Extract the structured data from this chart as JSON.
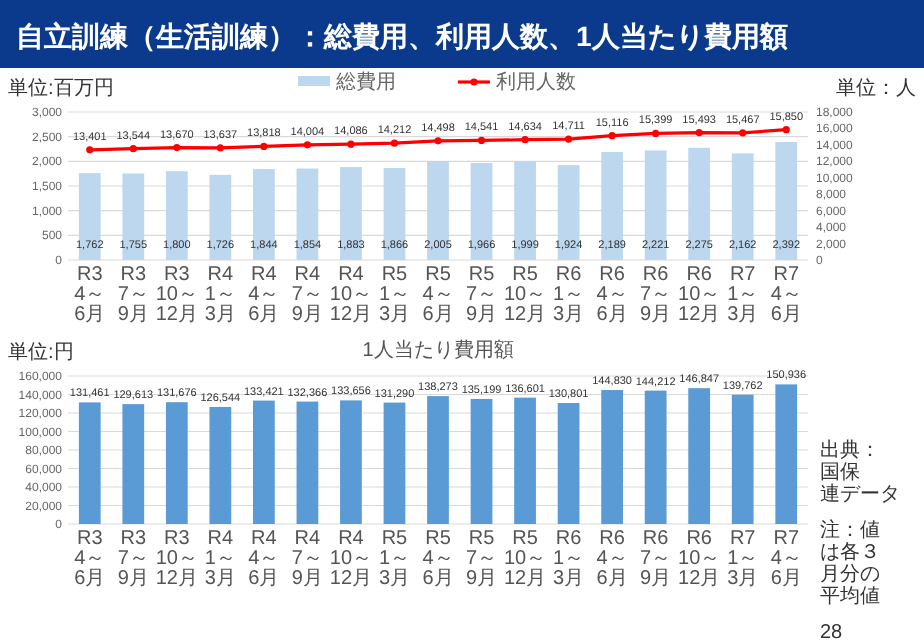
{
  "chart_data": [
    {
      "type": "bar",
      "title": "自立訓練（生活訓練）：総費用、利用人数、1人当たり費用額",
      "ylabel": "単位:百万円",
      "y2label": "単位：人",
      "categories": [
        "R3\n4～6月",
        "R3\n7～9月",
        "R3\n10～12月",
        "R4\n1～3月",
        "R4\n4～6月",
        "R4\n7～9月",
        "R4\n10～12月",
        "R5\n1～3月",
        "R5\n4～6月",
        "R5\n7～9月",
        "R5\n10～12月",
        "R6\n1～3月",
        "R6\n4～6月",
        "R6\n7～9月",
        "R6\n10～12月",
        "R7\n1～3月",
        "R7\n4～6月"
      ],
      "series": [
        {
          "type": "bar",
          "name": "総費用",
          "color": "#bdd7ee",
          "values": [
            1762,
            1755,
            1800,
            1726,
            1844,
            1854,
            1883,
            1866,
            2005,
            1966,
            1999,
            1924,
            2189,
            2221,
            2275,
            2162,
            2392
          ],
          "value_labels": [
            "1,762",
            "1,755",
            "1,800",
            "1,726",
            "1,844",
            "1,854",
            "1,883",
            "1,866",
            "2,005",
            "1,966",
            "1,999",
            "1,924",
            "2,189",
            "2,221",
            "2,275",
            "2,162",
            "2,392"
          ]
        },
        {
          "type": "line",
          "axis": "y2",
          "name": "利用人数",
          "color": "#ff0000",
          "marker": "circle",
          "line_style": "solid",
          "values": [
            13401,
            13544,
            13670,
            13637,
            13818,
            14004,
            14086,
            14212,
            14498,
            14541,
            14634,
            14711,
            15116,
            15399,
            15493,
            15467,
            15850
          ],
          "value_labels": [
            "13,401",
            "13,544",
            "13,670",
            "13,637",
            "13,818",
            "14,004",
            "14,086",
            "14,212",
            "14,498",
            "14,541",
            "14,634",
            "14,711",
            "15,116",
            "15,399",
            "15,493",
            "15,467",
            "15,850"
          ]
        }
      ],
      "ylim": [
        0,
        3000
      ],
      "yticks": [
        {
          "value": 0,
          "label": "0"
        },
        500,
        {
          "value": 1000,
          "label": "1,000"
        },
        {
          "value": 1500,
          "label": "1,500"
        },
        {
          "value": 2000,
          "label": "2,000"
        },
        {
          "value": 2500,
          "label": "2,500"
        },
        {
          "value": 3000,
          "label": "3,000"
        }
      ],
      "y2lim": [
        0,
        18000
      ],
      "y2ticks": [
        {
          "value": 0,
          "label": "0"
        },
        {
          "value": 2000,
          "label": "2,000"
        },
        {
          "value": 4000,
          "label": "4,000"
        },
        {
          "value": 6000,
          "label": "6,000"
        },
        {
          "value": 8000,
          "label": "8,000"
        },
        {
          "value": 10000,
          "label": "10,000"
        },
        {
          "value": 12000,
          "label": "12,000"
        },
        {
          "value": 14000,
          "label": "14,000"
        },
        {
          "value": 16000,
          "label": "16,000"
        },
        {
          "value": 18000,
          "label": "18,000"
        }
      ],
      "grid": "y",
      "legend": "top"
    },
    {
      "type": "bar",
      "title": "1人当たり費用額",
      "ylabel": "単位:円",
      "categories": [
        "R3\n4～6月",
        "R3\n7～9月",
        "R3\n10～12月",
        "R4\n1～3月",
        "R4\n4～6月",
        "R4\n7～9月",
        "R4\n10～12月",
        "R5\n1～3月",
        "R5\n4～6月",
        "R5\n7～9月",
        "R5\n10～12月",
        "R6\n1～3月",
        "R6\n4～6月",
        "R6\n7～9月",
        "R6\n10～12月",
        "R7\n1～3月",
        "R7\n4～6月"
      ],
      "series": [
        {
          "type": "bar",
          "color": "#5b9bd5",
          "values": [
            131461,
            129613,
            131676,
            126544,
            133421,
            132366,
            133656,
            131290,
            138273,
            135199,
            136601,
            130801,
            144830,
            144212,
            146847,
            139762,
            150936
          ],
          "value_labels": [
            "131,461",
            "129,613",
            "131,676",
            "126,544",
            "133,421",
            "132,366",
            "133,656",
            "131,290",
            "138,273",
            "135,199",
            "136,601",
            "130,801",
            "144,830",
            "144,212",
            "146,847",
            "139,762",
            "150,936"
          ]
        }
      ],
      "ylim": [
        0,
        160000
      ],
      "yticks": [
        {
          "value": 0,
          "label": "0"
        },
        {
          "value": 20000,
          "label": "20,000"
        },
        {
          "value": 40000,
          "label": "40,000"
        },
        {
          "value": 60000,
          "label": "60,000"
        },
        {
          "value": 80000,
          "label": "80,000"
        },
        {
          "value": 100000,
          "label": "100,000"
        },
        {
          "value": 120000,
          "label": "120,000"
        },
        {
          "value": 140000,
          "label": "140,000"
        },
        {
          "value": 160000,
          "label": "160,000"
        }
      ],
      "grid": "y",
      "annotations": [
        "出典：国保連データ",
        "注：値は各３月分の平均値",
        "28"
      ]
    }
  ]
}
